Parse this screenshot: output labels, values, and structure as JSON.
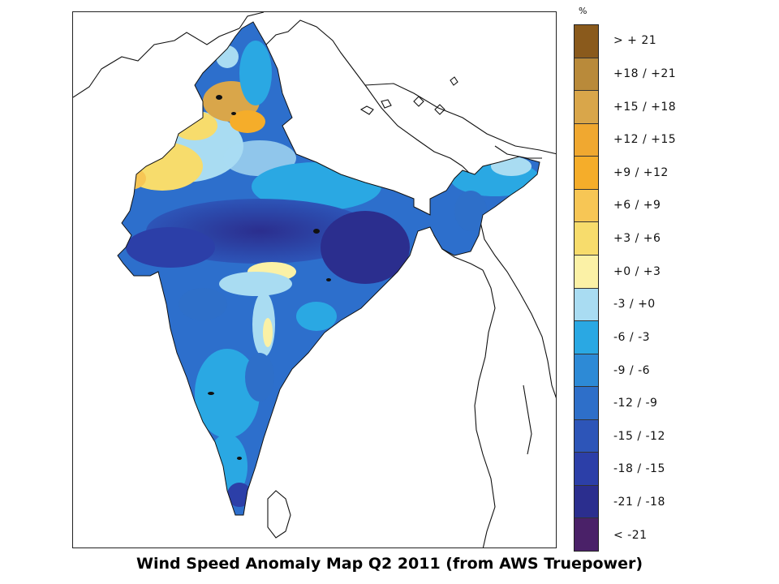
{
  "caption": "Wind Speed Anomaly Map Q2 2011 (from AWS Truepower)",
  "legend": {
    "unit": "%",
    "items": [
      {
        "label": "> + 21",
        "color": "#8a5a1c"
      },
      {
        "label": "+18 / +21",
        "color": "#b98a3a"
      },
      {
        "label": "+15 / +18",
        "color": "#d9a64a"
      },
      {
        "label": "+12 / +15",
        "color": "#f0a830"
      },
      {
        "label": "+9 / +12",
        "color": "#f5ad2a"
      },
      {
        "label": "+6 / +9",
        "color": "#f7c655"
      },
      {
        "label": "+3 / +6",
        "color": "#f7dc6c"
      },
      {
        "label": "+0 / +3",
        "color": "#fbf1a6"
      },
      {
        "label": "-3 / +0",
        "color": "#a9dcf2"
      },
      {
        "label": "-6 / -3",
        "color": "#2aa8e3"
      },
      {
        "label": "-9 / -6",
        "color": "#2d8ad6"
      },
      {
        "label": "-12 / -9",
        "color": "#2e6fc9"
      },
      {
        "label": "-15 / -12",
        "color": "#2d55b8"
      },
      {
        "label": "-18 / -15",
        "color": "#2c3fa8"
      },
      {
        "label": "-21 / -18",
        "color": "#2b2e8e"
      },
      {
        "label": "< -21",
        "color": "#4a2168"
      }
    ]
  }
}
